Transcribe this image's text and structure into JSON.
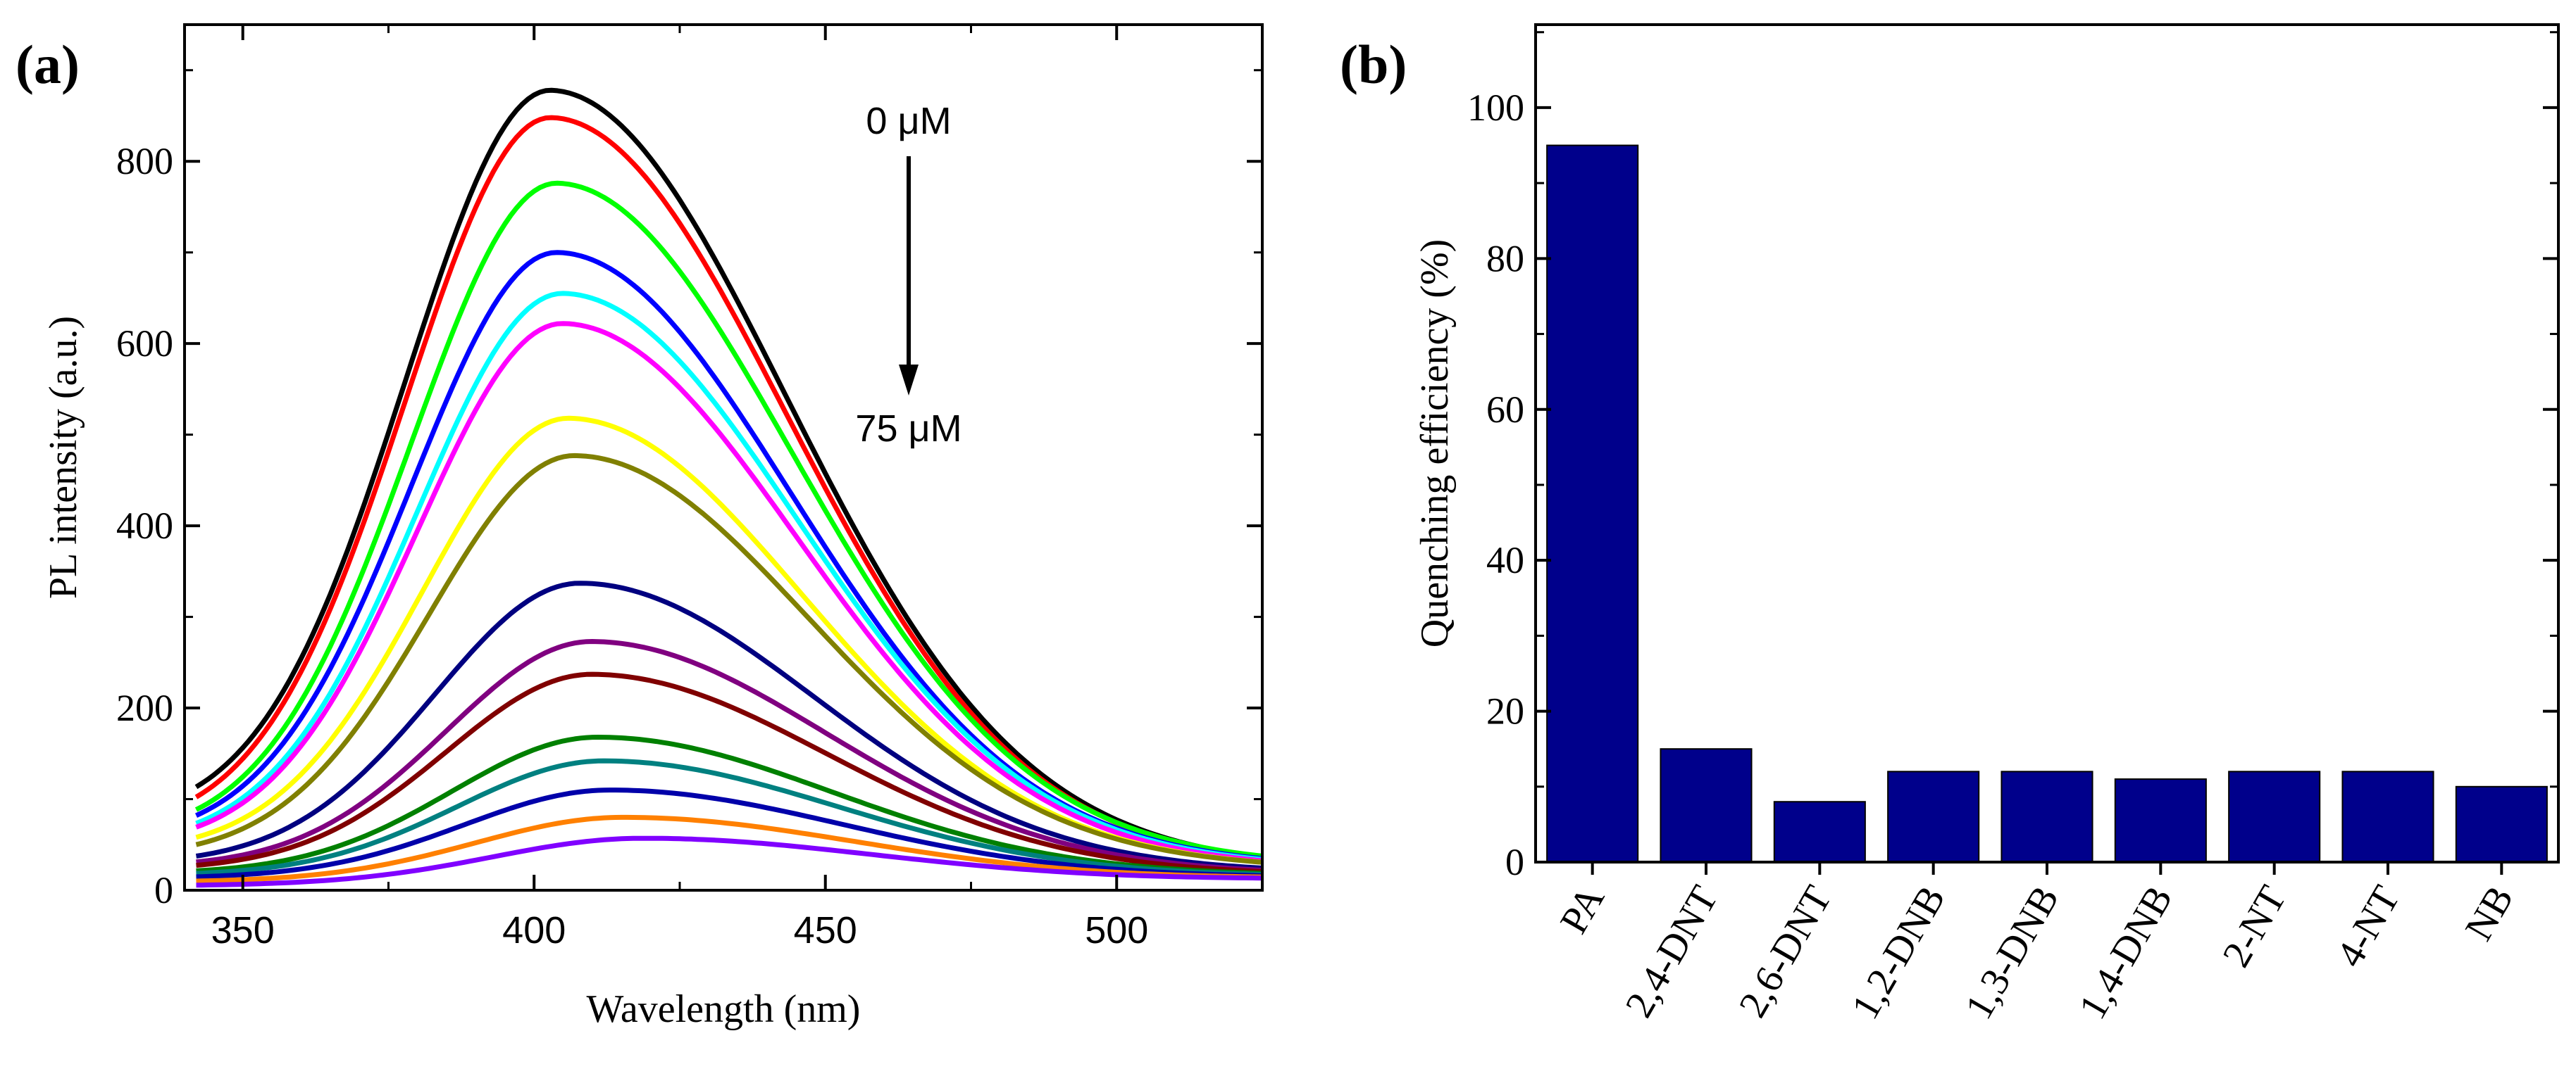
{
  "chart_data": [
    {
      "panel_label": "(a)",
      "type": "line",
      "xlabel": "Wavelength (nm)",
      "ylabel": "PL intensity (a.u.)",
      "xlim": [
        340,
        525
      ],
      "ylim": [
        0,
        950
      ],
      "xticks": [
        350,
        400,
        450,
        500
      ],
      "yticks": [
        0,
        200,
        400,
        600,
        800
      ],
      "annotation_top": "0 μM",
      "annotation_bottom": "75 μM",
      "series": [
        {
          "name": "curve-1",
          "color": "#000000",
          "peak_x": 403,
          "peak_y": 878,
          "start_y": 72,
          "end_y": 28
        },
        {
          "name": "curve-2",
          "color": "#ff0000",
          "peak_x": 403,
          "peak_y": 848,
          "start_y": 62,
          "end_y": 27
        },
        {
          "name": "curve-3",
          "color": "#00ff00",
          "peak_x": 404,
          "peak_y": 776,
          "start_y": 55,
          "end_y": 30
        },
        {
          "name": "curve-4",
          "color": "#0000ff",
          "peak_x": 404,
          "peak_y": 700,
          "start_y": 52,
          "end_y": 28
        },
        {
          "name": "curve-5",
          "color": "#00ffff",
          "peak_x": 405,
          "peak_y": 655,
          "start_y": 48,
          "end_y": 27
        },
        {
          "name": "curve-6",
          "color": "#ff00ff",
          "peak_x": 405,
          "peak_y": 622,
          "start_y": 45,
          "end_y": 26
        },
        {
          "name": "curve-7",
          "color": "#ffff00",
          "peak_x": 406,
          "peak_y": 518,
          "start_y": 40,
          "end_y": 25
        },
        {
          "name": "curve-8",
          "color": "#808000",
          "peak_x": 407,
          "peak_y": 477,
          "start_y": 35,
          "end_y": 25
        },
        {
          "name": "curve-9",
          "color": "#000080",
          "peak_x": 408,
          "peak_y": 337,
          "start_y": 28,
          "end_y": 20
        },
        {
          "name": "curve-10",
          "color": "#800080",
          "peak_x": 410,
          "peak_y": 273,
          "start_y": 25,
          "end_y": 18
        },
        {
          "name": "curve-11",
          "color": "#800000",
          "peak_x": 410,
          "peak_y": 237,
          "start_y": 22,
          "end_y": 17
        },
        {
          "name": "curve-12",
          "color": "#008000",
          "peak_x": 411,
          "peak_y": 168,
          "start_y": 18,
          "end_y": 16
        },
        {
          "name": "curve-13",
          "color": "#008080",
          "peak_x": 412,
          "peak_y": 142,
          "start_y": 16,
          "end_y": 15
        },
        {
          "name": "curve-14",
          "color": "#0000aa",
          "peak_x": 413,
          "peak_y": 110,
          "start_y": 13,
          "end_y": 14
        },
        {
          "name": "curve-15",
          "color": "#ff8000",
          "peak_x": 415,
          "peak_y": 80,
          "start_y": 9,
          "end_y": 13
        },
        {
          "name": "curve-16",
          "color": "#8000ff",
          "peak_x": 418,
          "peak_y": 57,
          "start_y": 5,
          "end_y": 12
        }
      ]
    },
    {
      "panel_label": "(b)",
      "type": "bar",
      "ylabel": "Quenching efficiency  (%)",
      "ylim": [
        0,
        111
      ],
      "yticks": [
        0,
        20,
        40,
        60,
        80,
        100
      ],
      "categories": [
        "PA",
        "2,4-DNT",
        "2,6-DNT",
        "1,2-DNB",
        "1,3-DNB",
        "1,4-DNB",
        "2-NT",
        "4-NT",
        "NB"
      ],
      "values": [
        95,
        15,
        8,
        12,
        12,
        11,
        12,
        12,
        10
      ],
      "bar_color": "#00008b"
    }
  ]
}
